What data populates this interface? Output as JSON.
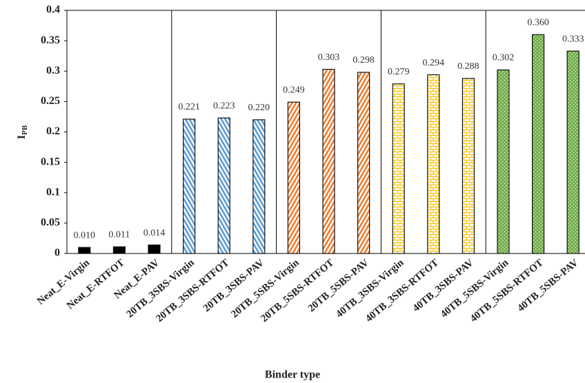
{
  "chart_data": {
    "type": "bar",
    "categories": [
      "Neat_E-Virgin",
      "Neat_E-RTFOT",
      "Neat_E-PAV",
      "20TB_3SBS-Virgin",
      "20TB_3SBS-RTFOT",
      "20TB_3SBS-PAV",
      "20TB_5SBS-Virgin",
      "20TB_5SBS-RTFOT",
      "20TB_5SBS-PAV",
      "40TB_3SBS-Virgin",
      "40TB_3SBS-RTFOT",
      "40TB_3SBS-PAV",
      "40TB_5SBS-Virgin",
      "40TB_5SBS-RTFOT",
      "40TB_5SBS-PAV"
    ],
    "values": [
      0.01,
      0.011,
      0.014,
      0.221,
      0.223,
      0.22,
      0.249,
      0.303,
      0.298,
      0.279,
      0.294,
      0.288,
      0.302,
      0.36,
      0.333
    ],
    "value_labels": [
      "0.010",
      "0.011",
      "0.014",
      "0.221",
      "0.223",
      "0.220",
      "0.249",
      "0.303",
      "0.298",
      "0.279",
      "0.294",
      "0.288",
      "0.302",
      "0.360",
      "0.333"
    ],
    "bar_patterns": [
      "solid",
      "solid",
      "solid",
      "stripe-blue",
      "stripe-blue",
      "stripe-blue",
      "stripe-orange",
      "stripe-orange",
      "stripe-orange",
      "brick-yellow",
      "brick-yellow",
      "brick-yellow",
      "dots-green",
      "dots-green",
      "dots-green"
    ],
    "x_label": "Binder type",
    "y_label": "I",
    "y_label_sub": "PB",
    "ylim": [
      0,
      0.4
    ],
    "yticks": [
      0,
      0.05,
      0.1,
      0.15,
      0.2,
      0.25,
      0.3,
      0.35,
      0.4
    ]
  }
}
